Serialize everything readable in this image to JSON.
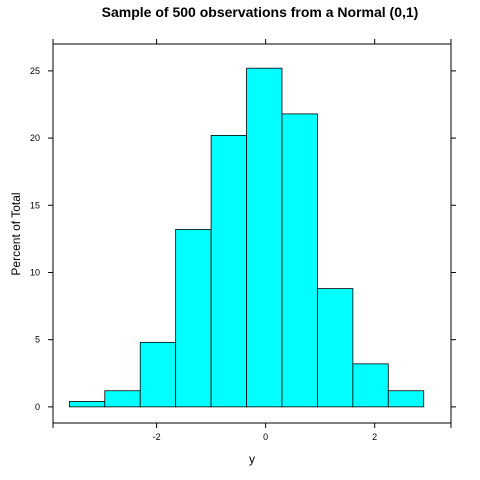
{
  "chart_data": {
    "type": "bar",
    "title": "Sample of 500 observations from a Normal (0,1)",
    "xlabel": "y",
    "ylabel": "Percent of Total",
    "xlim": [
      -3.9,
      3.4
    ],
    "ylim": [
      -1.2,
      27.0
    ],
    "x_ticks": [
      -2,
      0,
      2
    ],
    "x_tick_labels": [
      "-2",
      "0",
      "2"
    ],
    "y_ticks": [
      0,
      5,
      10,
      15,
      20,
      25
    ],
    "y_tick_labels": [
      "0",
      "5",
      "10",
      "15",
      "20",
      "25"
    ],
    "bins": [
      [
        -3.6,
        -2.95
      ],
      [
        -2.95,
        -2.3
      ],
      [
        -2.3,
        -1.65
      ],
      [
        -1.65,
        -1.0
      ],
      [
        -1.0,
        -0.35
      ],
      [
        -0.35,
        0.3
      ],
      [
        0.3,
        0.95
      ],
      [
        0.95,
        1.6
      ],
      [
        1.6,
        2.25
      ],
      [
        2.25,
        2.9
      ]
    ],
    "values": [
      0.4,
      1.2,
      4.8,
      13.2,
      20.2,
      25.2,
      21.8,
      8.8,
      3.2,
      1.2
    ],
    "bar_color": "#00ffff",
    "grid": false
  }
}
